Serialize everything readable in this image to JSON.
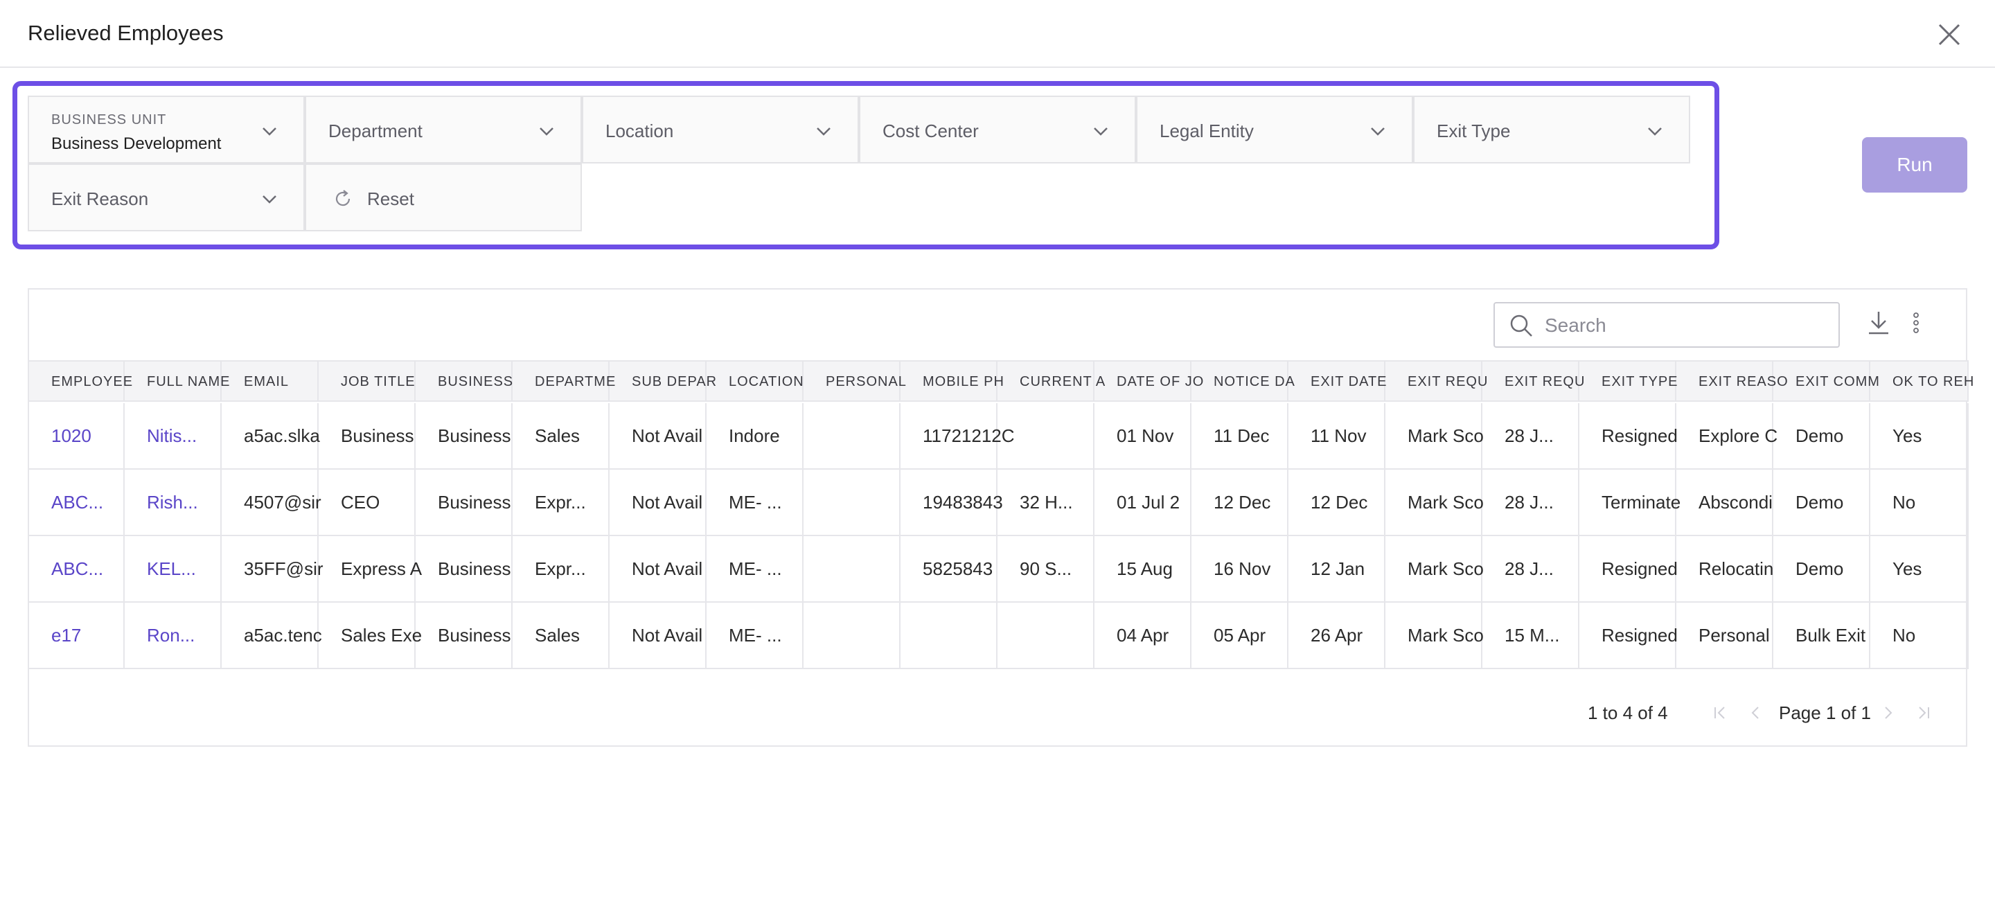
{
  "dialog": {
    "title": "Relieved Employees"
  },
  "filters": {
    "business_unit": {
      "label": "BUSINESS UNIT",
      "value": "Business Development"
    },
    "department": "Department",
    "location": "Location",
    "cost_center": "Cost Center",
    "legal_entity": "Legal Entity",
    "exit_type": "Exit Type",
    "exit_reason": "Exit Reason",
    "reset": "Reset"
  },
  "run_label": "Run",
  "colors": {
    "accent": "#6d4fe6",
    "link": "#5a45c8",
    "run_disabled": "#a99ee0"
  },
  "table": {
    "search_placeholder": "Search",
    "columns": [
      "EMPLOYEE",
      "FULL NAME",
      "EMAIL",
      "JOB TITLE",
      "BUSINESS",
      "DEPARTME",
      "SUB DEPAR",
      "LOCATION",
      "PERSONAL",
      "MOBILE PH",
      "CURRENT A",
      "DATE OF JO",
      "NOTICE DA",
      "EXIT DATE",
      "EXIT REQU",
      "EXIT REQU",
      "EXIT TYPE",
      "EXIT REASO",
      "EXIT COMM",
      "OK TO REH"
    ],
    "rows": [
      [
        "1020",
        "Nitis...",
        "a5ac.slka",
        "Business",
        "Business",
        "Sales",
        "Not Avail",
        "Indore",
        "",
        "11721212C",
        "",
        "01 Nov",
        "11 Dec",
        "11 Nov",
        "Mark Sco",
        "28 J...",
        "Resigned",
        "Explore C",
        "Demo",
        "Yes"
      ],
      [
        "ABC...",
        "Rish...",
        "4507@sir",
        "CEO",
        "Business",
        "Expr...",
        "Not Avail",
        "ME- ...",
        "",
        "19483843",
        "32 H...",
        "01 Jul 2",
        "12 Dec",
        "12 Dec",
        "Mark Sco",
        "28 J...",
        "Terminate",
        "Abscondi",
        "Demo",
        "No"
      ],
      [
        "ABC...",
        "KEL...",
        "35FF@sir",
        "Express A",
        "Business",
        "Expr...",
        "Not Avail",
        "ME- ...",
        "",
        "5825843",
        "90 S...",
        "15 Aug",
        "16 Nov",
        "12 Jan",
        "Mark Sco",
        "28 J...",
        "Resigned",
        "Relocatin",
        "Demo",
        "Yes"
      ],
      [
        "e17",
        "Ron...",
        "a5ac.tenc",
        "Sales Exe",
        "Business",
        "Sales",
        "Not Avail",
        "ME- ...",
        "",
        "",
        "",
        "04 Apr",
        "05 Apr",
        "26 Apr",
        "Mark Sco",
        "15 M...",
        "Resigned",
        "Personal",
        "Bulk Exit",
        "No"
      ]
    ]
  },
  "pagination": {
    "count": "1 to 4 of 4",
    "page": "Page 1 of 1"
  },
  "icons": {
    "close": "close-icon",
    "chevron": "chevron-down-icon",
    "reset": "refresh-icon",
    "search": "search-icon",
    "download": "download-icon",
    "more": "more-vertical-icon"
  }
}
